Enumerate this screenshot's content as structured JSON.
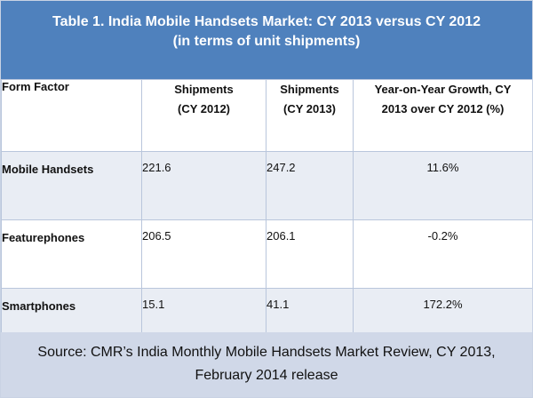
{
  "title": {
    "line1": "Table 1. India Mobile Handsets Market: CY 2013 versus CY 2012",
    "line2": "(in terms of unit shipments)"
  },
  "columns": [
    {
      "line1": "Form Factor",
      "line2": ""
    },
    {
      "line1": "Shipments",
      "line2": "(CY 2012)"
    },
    {
      "line1": "Shipments",
      "line2": "(CY 2013)"
    },
    {
      "line1": "Year-on-Year Growth, CY",
      "line2": "2013 over CY 2012 (%)"
    }
  ],
  "rows": [
    {
      "form_factor": "Mobile Handsets",
      "cy2012": "221.6",
      "cy2013": "247.2",
      "growth": "11.6%"
    },
    {
      "form_factor": "Featurephones",
      "cy2012": "206.5",
      "cy2013": "206.1",
      "growth": "-0.2%"
    },
    {
      "form_factor": "Smartphones",
      "cy2012": "15.1",
      "cy2013": "41.1",
      "growth": "172.2%"
    }
  ],
  "source": {
    "line1": "Source: CMR’s India Monthly Mobile Handsets Market Review, CY 2013,",
    "line2": "February 2014 release"
  },
  "colors": {
    "header_bg": "#4f81bd",
    "band_bg": "#e9edf4",
    "footer_bg": "#d0d8e8"
  }
}
